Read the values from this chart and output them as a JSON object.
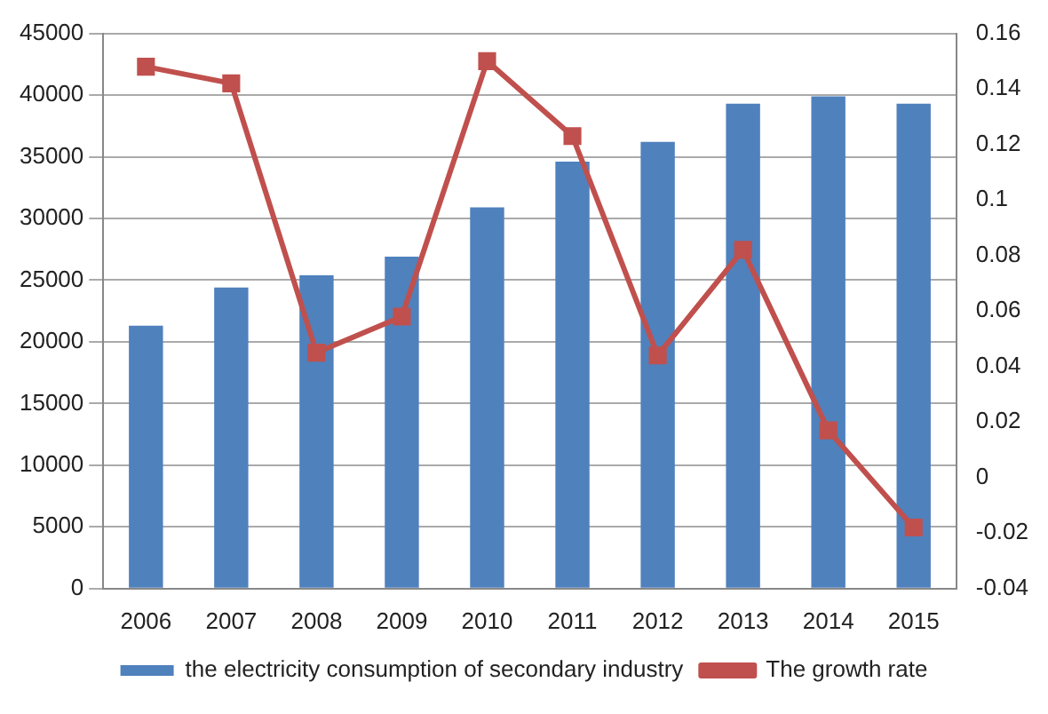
{
  "chart_data": {
    "type": "bar",
    "categories": [
      "2006",
      "2007",
      "2008",
      "2009",
      "2010",
      "2011",
      "2012",
      "2013",
      "2014",
      "2015"
    ],
    "series": [
      {
        "name": "the electricity consumption of secondary industry",
        "color": "#4f81bd",
        "values": [
          21300,
          24400,
          25400,
          26900,
          30900,
          34600,
          36200,
          39300,
          39900,
          39300
        ]
      },
      {
        "name": "The growth rate",
        "type": "line",
        "axis": "y2",
        "color": "#c0504d",
        "marker": "square",
        "values": [
          0.148,
          0.142,
          0.045,
          0.058,
          0.15,
          0.123,
          0.044,
          0.082,
          0.017,
          -0.018
        ]
      }
    ],
    "ylim": [
      0,
      45000
    ],
    "yticks": [
      0,
      5000,
      10000,
      15000,
      20000,
      25000,
      30000,
      35000,
      40000,
      45000
    ],
    "y2lim": [
      -0.04,
      0.16
    ],
    "y2ticks": [
      -0.04,
      -0.02,
      0,
      0.02,
      0.04,
      0.06,
      0.08,
      0.1,
      0.12,
      0.14,
      0.16
    ],
    "grid": "y",
    "legend": "bottom"
  }
}
